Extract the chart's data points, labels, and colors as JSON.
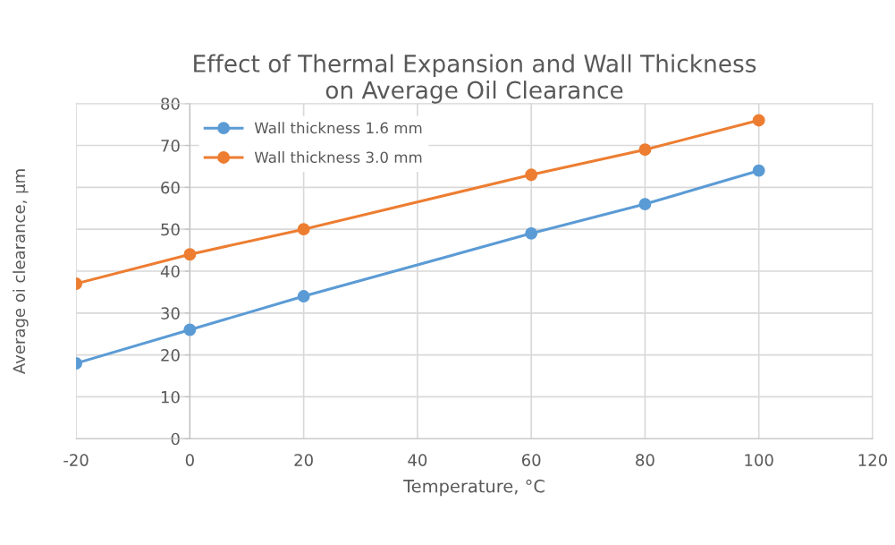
{
  "chart_data": {
    "type": "line",
    "title": "Effect of Thermal Expansion and Wall Thickness\non Average Oil Clearance",
    "xlabel": "Temperature, °C",
    "ylabel": "Average oi clearance, µm",
    "x": [
      -20,
      0,
      20,
      60,
      80,
      100
    ],
    "series": [
      {
        "name": "Wall thickness 1.6 mm",
        "color": "#5b9bd5",
        "values": [
          18,
          26,
          34,
          49,
          56,
          64
        ]
      },
      {
        "name": "Wall thickness 3.0 mm",
        "color": "#ed7d31",
        "values": [
          37,
          44,
          50,
          63,
          69,
          76
        ]
      }
    ],
    "xlim": [
      -20,
      120
    ],
    "xticks": [
      -20,
      0,
      20,
      40,
      60,
      80,
      100,
      120
    ],
    "ylim": [
      0,
      80
    ],
    "yticks": [
      0,
      10,
      20,
      30,
      40,
      50,
      60,
      70,
      80
    ],
    "grid": true,
    "legend": "top left",
    "marker": "circle",
    "line_style": "solid"
  }
}
